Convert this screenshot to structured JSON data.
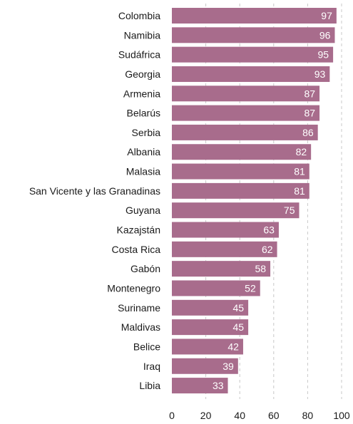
{
  "chart_data": {
    "type": "bar",
    "orientation": "horizontal",
    "categories": [
      "Colombia",
      "Namibia",
      "Sudáfrica",
      "Georgia",
      "Armenia",
      "Belarús",
      "Serbia",
      "Albania",
      "Malasia",
      "San Vicente y las Granadinas",
      "Guyana",
      "Kazajstán",
      "Costa Rica",
      "Gabón",
      "Montenegro",
      "Suriname",
      "Maldivas",
      "Belice",
      "Iraq",
      "Libia"
    ],
    "values": [
      97,
      96,
      95,
      93,
      87,
      87,
      86,
      82,
      81,
      81,
      75,
      63,
      62,
      58,
      52,
      45,
      45,
      42,
      39,
      33
    ],
    "value_labels": [
      "97",
      "96",
      "95",
      "93",
      "87",
      "87",
      "86",
      "82",
      "81",
      "81",
      "75",
      "63",
      "62",
      "58",
      "52",
      "45",
      "45",
      "42",
      "39",
      "33"
    ],
    "xlim": [
      0,
      100
    ],
    "xticks": [
      "0",
      "20",
      "40",
      "60",
      "80",
      "100"
    ],
    "grid": "vertical dashed",
    "bar_color": "#a86c8c",
    "title": "",
    "xlabel": "",
    "ylabel": ""
  }
}
